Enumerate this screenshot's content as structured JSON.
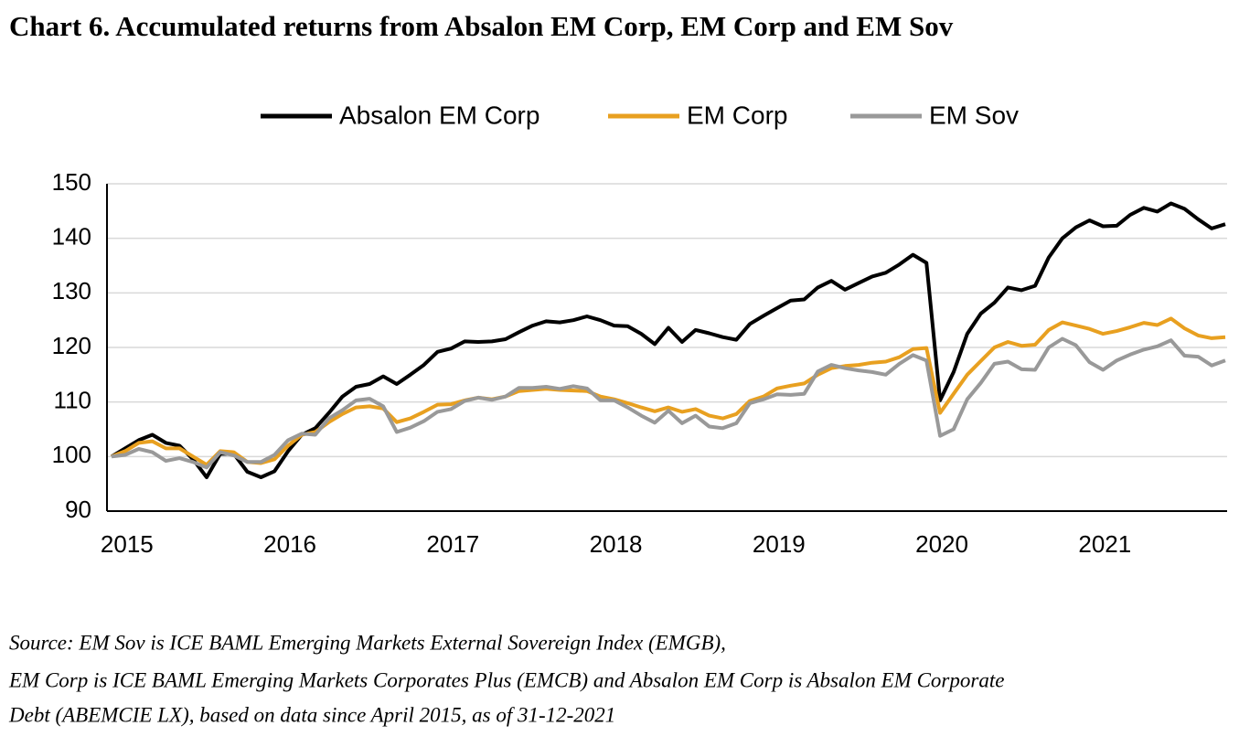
{
  "chart_data": {
    "type": "line",
    "title": "Chart 6. Accumulated returns from Absalon EM Corp, EM Corp and EM Sov",
    "categories": [
      null,
      "2015",
      null,
      null,
      null,
      null,
      null,
      null,
      null,
      null,
      null,
      null,
      null,
      "2016",
      null,
      null,
      null,
      null,
      null,
      null,
      null,
      null,
      null,
      null,
      null,
      "2017",
      null,
      null,
      null,
      null,
      null,
      null,
      null,
      null,
      null,
      null,
      null,
      "2018",
      null,
      null,
      null,
      null,
      null,
      null,
      null,
      null,
      null,
      null,
      null,
      "2019",
      null,
      null,
      null,
      null,
      null,
      null,
      null,
      null,
      null,
      null,
      null,
      "2020",
      null,
      null,
      null,
      null,
      null,
      null,
      null,
      null,
      null,
      null,
      null,
      "2021",
      null,
      null,
      null,
      null,
      null,
      null,
      null,
      null,
      null
    ],
    "series": [
      {
        "name": "Absalon EM Corp",
        "color": "#000000",
        "values": [
          100,
          101.5,
          103,
          104,
          102.5,
          102,
          99.5,
          96.2,
          100.5,
          100.5,
          97.2,
          96.2,
          97.3,
          101,
          104,
          105.2,
          108,
          111,
          112.8,
          113.3,
          114.7,
          113.3,
          115,
          116.8,
          119.2,
          119.8,
          121.1,
          121,
          121.1,
          121.5,
          122.8,
          124,
          124.8,
          124.6,
          125,
          125.7,
          125,
          124,
          123.9,
          122.5,
          120.6,
          123.6,
          121,
          123.2,
          122.6,
          121.9,
          121.4,
          124.3,
          125.8,
          127.2,
          128.6,
          128.8,
          131,
          132.2,
          130.6,
          131.8,
          133,
          133.7,
          135.2,
          137,
          135.5,
          110.3,
          115.5,
          122.5,
          126.2,
          128.2,
          131,
          130.5,
          131.3,
          136.5,
          140,
          142,
          143.3,
          142.2,
          142.3,
          144.3,
          145.6,
          144.9,
          146.4,
          145.4,
          143.5,
          141.8,
          142.6
        ]
      },
      {
        "name": "EM Corp",
        "color": "#e8a020",
        "values": [
          100,
          101,
          102.5,
          102.8,
          101.5,
          101.5,
          100,
          98.5,
          101,
          100.8,
          99,
          98.8,
          99.5,
          102,
          104,
          104.5,
          106.3,
          107.8,
          109,
          109.2,
          108.8,
          106.3,
          107,
          108.2,
          109.5,
          109.6,
          110.3,
          110.8,
          110.5,
          111,
          112,
          112.2,
          112.4,
          112.2,
          112.1,
          112,
          111,
          110.5,
          109.8,
          109,
          108.3,
          109,
          108.2,
          108.7,
          107.5,
          107,
          107.8,
          110.2,
          111,
          112.5,
          113,
          113.4,
          115,
          116.2,
          116.6,
          116.8,
          117.2,
          117.4,
          118.2,
          119.7,
          119.9,
          108,
          111.5,
          115,
          117.5,
          120,
          121,
          120.3,
          120.5,
          123.2,
          124.6,
          124,
          123.4,
          122.5,
          123,
          123.7,
          124.5,
          124.1,
          125.3,
          123.5,
          122.2,
          121.7,
          121.9
        ]
      },
      {
        "name": "EM Sov",
        "color": "#999999",
        "values": [
          100,
          100.3,
          101.4,
          100.8,
          99.2,
          99.7,
          99,
          98,
          100.8,
          100.2,
          99,
          99,
          100.3,
          103,
          104.2,
          104,
          107,
          108.5,
          110.3,
          110.6,
          109.2,
          104.5,
          105.3,
          106.5,
          108.2,
          108.7,
          110.2,
          110.8,
          110.4,
          111,
          112.6,
          112.6,
          112.8,
          112.4,
          112.9,
          112.5,
          110.3,
          110.3,
          109,
          107.5,
          106.2,
          108.4,
          106.1,
          107.5,
          105.5,
          105.2,
          106.1,
          109.8,
          110.5,
          111.4,
          111.3,
          111.5,
          115.6,
          116.8,
          116.2,
          115.8,
          115.5,
          115,
          117,
          118.6,
          117.6,
          103.8,
          105,
          110.5,
          113.5,
          117,
          117.4,
          116,
          115.9,
          120,
          121.6,
          120.4,
          117.3,
          115.9,
          117.6,
          118.7,
          119.6,
          120.2,
          121.3,
          118.5,
          118.3,
          116.7,
          117.6
        ]
      }
    ],
    "ylim": [
      90,
      150
    ],
    "yticks": [
      90,
      100,
      110,
      120,
      130,
      140,
      150
    ],
    "grid": true,
    "legend": "top"
  },
  "source": [
    "Source: EM Sov is ICE BAML Emerging Markets External Sovereign Index (EMGB),",
    "EM Corp is ICE BAML Emerging Markets Corporates Plus (EMCB) and Absalon EM Corp is Absalon EM Corporate",
    "Debt (ABEMCIE LX), based on data since April 2015, as of 31-12-2021"
  ]
}
